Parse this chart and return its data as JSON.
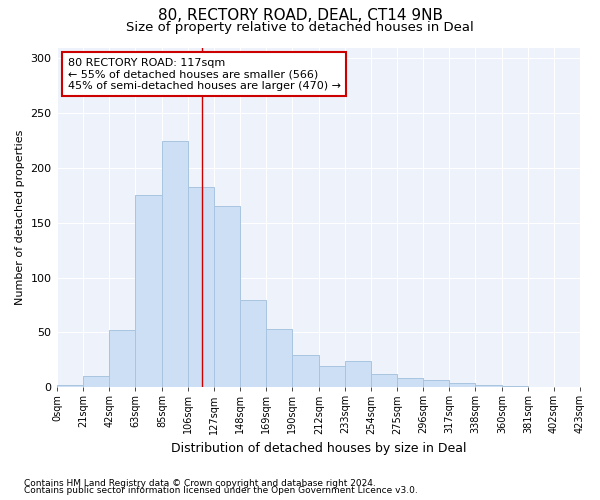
{
  "title": "80, RECTORY ROAD, DEAL, CT14 9NB",
  "subtitle": "Size of property relative to detached houses in Deal",
  "xlabel": "Distribution of detached houses by size in Deal",
  "ylabel": "Number of detached properties",
  "bar_color": "#ccdff5",
  "bar_edge_color": "#a8c4e0",
  "heights": [
    2,
    10,
    52,
    175,
    225,
    183,
    165,
    80,
    53,
    29,
    19,
    24,
    12,
    8,
    7,
    4,
    2,
    1,
    0,
    0
  ],
  "bins": [
    0,
    21,
    42,
    63,
    85,
    106,
    127,
    148,
    169,
    190,
    212,
    233,
    254,
    275,
    296,
    317,
    338,
    360,
    381,
    402,
    423
  ],
  "bin_labels": [
    "0sqm",
    "21sqm",
    "42sqm",
    "63sqm",
    "85sqm",
    "106sqm",
    "127sqm",
    "148sqm",
    "169sqm",
    "190sqm",
    "212sqm",
    "233sqm",
    "254sqm",
    "275sqm",
    "296sqm",
    "317sqm",
    "338sqm",
    "360sqm",
    "381sqm",
    "402sqm",
    "423sqm"
  ],
  "vline_x": 117,
  "vline_color": "#cc0000",
  "annotation_line1": "80 RECTORY ROAD: 117sqm",
  "annotation_line2": "← 55% of detached houses are smaller (566)",
  "annotation_line3": "45% of semi-detached houses are larger (470) →",
  "annotation_box_color": "#ffffff",
  "annotation_box_edge": "#cc0000",
  "ylim": [
    0,
    310
  ],
  "yticks": [
    0,
    50,
    100,
    150,
    200,
    250,
    300
  ],
  "background_color": "#eef2fa",
  "grid_color": "#ffffff",
  "footer1": "Contains HM Land Registry data © Crown copyright and database right 2024.",
  "footer2": "Contains public sector information licensed under the Open Government Licence v3.0."
}
